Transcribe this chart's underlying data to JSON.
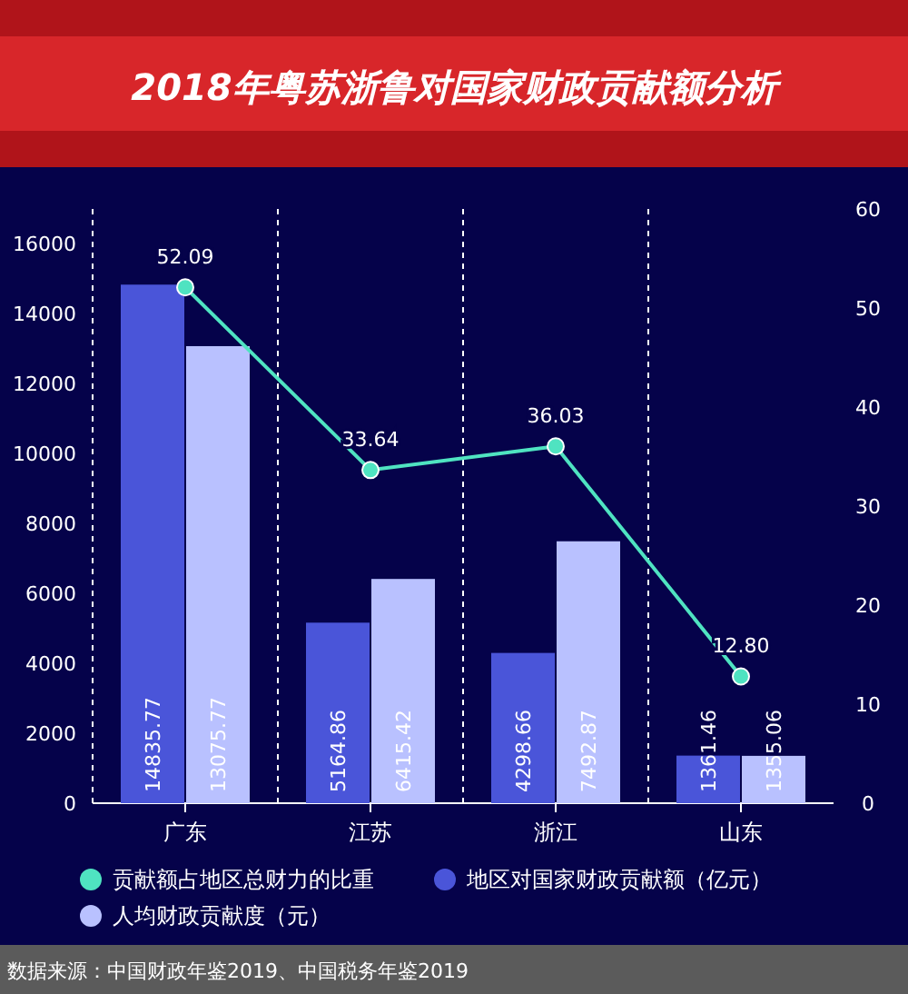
{
  "chart_data": {
    "type": "bar",
    "title": "2018年粤苏浙鲁对国家财政贡献额分析",
    "categories": [
      "广东",
      "江苏",
      "浙江",
      "山东"
    ],
    "series": [
      {
        "name": "贡献额占地区总财力的比重",
        "type": "line",
        "axis": "y2",
        "color": "#4fe3c1",
        "values": [
          52.09,
          33.64,
          36.03,
          12.8
        ],
        "value_labels": [
          "52.09",
          "33.64",
          "36.03",
          "12.80"
        ],
        "marker": "circle"
      },
      {
        "name": "地区对国家财政贡献额（亿元）",
        "color": "#4a55d9",
        "values": [
          14835.77,
          5164.86,
          4298.66,
          1361.46
        ],
        "value_labels": [
          "14835.77",
          "5164.86",
          "4298.66",
          "1361.46"
        ]
      },
      {
        "name": "人均财政贡献度（元）",
        "color": "#b9c1ff",
        "values": [
          13075.77,
          6415.42,
          7492.87,
          1355.06
        ],
        "value_labels": [
          "13075.77",
          "6415.42",
          "7492.87",
          "1355.06"
        ]
      }
    ],
    "ylim": [
      0,
      17000
    ],
    "yticks": [
      0,
      2000,
      4000,
      6000,
      8000,
      10000,
      12000,
      14000,
      16000
    ],
    "y2lim": [
      0,
      60
    ],
    "y2ticks": [
      0,
      10,
      20,
      30,
      40,
      50,
      60
    ],
    "grid": "x",
    "legend": "bottom",
    "data_labels": true,
    "annotations": [
      "数据来源：中国财政年鉴2019、中国税务年鉴2019"
    ]
  }
}
